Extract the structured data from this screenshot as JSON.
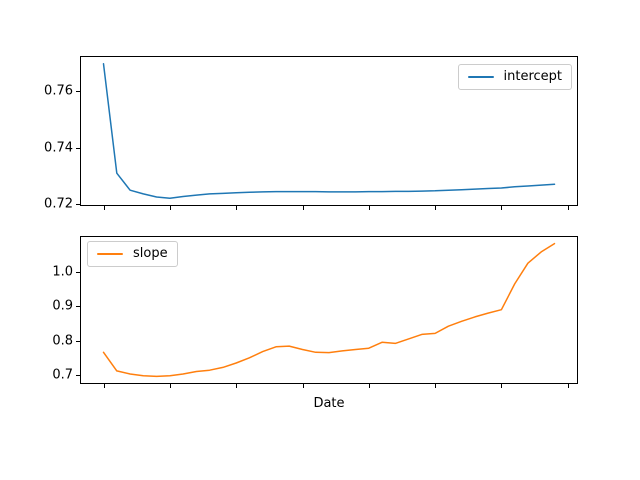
{
  "figure": {
    "background": "#ffffff"
  },
  "chart_data": [
    {
      "type": "line",
      "title": "",
      "xlabel": "",
      "ylabel": "",
      "grid": false,
      "legend": {
        "position": "upper right",
        "label": "intercept"
      },
      "x": [
        0,
        1,
        2,
        3,
        4,
        5,
        6,
        7,
        8,
        9,
        10,
        11,
        12,
        13,
        14,
        15,
        16,
        17,
        18,
        19,
        20,
        21,
        22,
        23,
        24,
        25,
        26,
        27,
        28,
        29,
        30,
        31,
        32,
        33,
        34
      ],
      "series": [
        {
          "name": "intercept",
          "color": "#1f77b4",
          "values": [
            0.7695,
            0.731,
            0.725,
            0.7237,
            0.7226,
            0.7222,
            0.7228,
            0.7233,
            0.7237,
            0.7239,
            0.7241,
            0.7243,
            0.7244,
            0.7245,
            0.7245,
            0.7245,
            0.7245,
            0.7244,
            0.7244,
            0.7244,
            0.7245,
            0.7245,
            0.7246,
            0.7246,
            0.7247,
            0.7248,
            0.725,
            0.7252,
            0.7254,
            0.7256,
            0.7258,
            0.7262,
            0.7265,
            0.7268,
            0.7271
          ]
        }
      ],
      "xlim": [
        -1.7,
        35.7
      ],
      "ylim": [
        0.7198,
        0.7719
      ],
      "xticks": [
        0,
        5,
        10,
        15,
        20,
        25,
        30,
        35
      ],
      "xtick_labels": [],
      "yticks": [
        0.72,
        0.74,
        0.76
      ],
      "ytick_labels": [
        "0.72",
        "0.74",
        "0.76"
      ]
    },
    {
      "type": "line",
      "title": "",
      "xlabel": "Date",
      "ylabel": "",
      "grid": false,
      "legend": {
        "position": "upper left",
        "label": "slope"
      },
      "x": [
        0,
        1,
        2,
        3,
        4,
        5,
        6,
        7,
        8,
        9,
        10,
        11,
        12,
        13,
        14,
        15,
        16,
        17,
        18,
        19,
        20,
        21,
        22,
        23,
        24,
        25,
        26,
        27,
        28,
        29,
        30,
        31,
        32,
        33,
        34
      ],
      "series": [
        {
          "name": "slope",
          "color": "#ff7f0e",
          "values": [
            0.766,
            0.712,
            0.703,
            0.698,
            0.696,
            0.698,
            0.703,
            0.71,
            0.714,
            0.722,
            0.735,
            0.75,
            0.768,
            0.782,
            0.784,
            0.774,
            0.766,
            0.765,
            0.77,
            0.774,
            0.778,
            0.795,
            0.792,
            0.805,
            0.818,
            0.821,
            0.842,
            0.856,
            0.869,
            0.88,
            0.89,
            0.965,
            1.025,
            1.058,
            1.082
          ]
        }
      ],
      "xlim": [
        -1.7,
        35.7
      ],
      "ylim": [
        0.6767,
        1.1013
      ],
      "xticks": [
        0,
        5,
        10,
        15,
        20,
        25,
        30,
        35
      ],
      "xtick_labels": [],
      "yticks": [
        0.7,
        0.8,
        0.9,
        1.0
      ],
      "ytick_labels": [
        "0.7",
        "0.8",
        "0.9",
        "1.0"
      ]
    }
  ]
}
